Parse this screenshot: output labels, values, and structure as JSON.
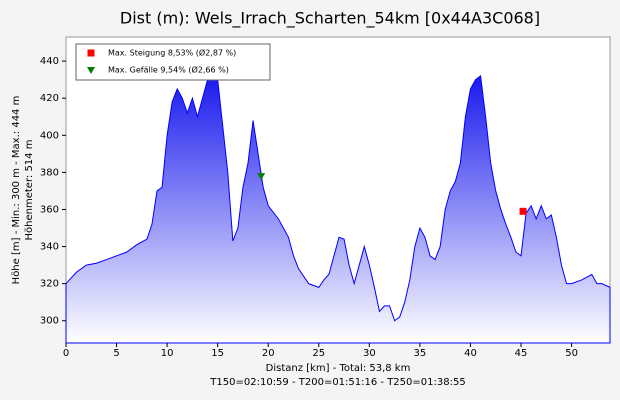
{
  "chart_data": {
    "type": "area",
    "title": "Dist (m):  Wels_Irrach_Scharten_54km [0x44A3C068]",
    "xlabel": "Distanz [km] - Total: 53,8 km",
    "footer": "T150=02:10:59 - T200=01:51:16 - T250=01:38:55",
    "ylabel": [
      "Höhe [m] - Min.: 300 m - Max.: 444 m",
      "Höhenmeter: 514 m"
    ],
    "color": "#0000ff",
    "x": [
      0,
      1,
      2,
      3,
      4,
      5,
      6,
      7,
      8,
      8.5,
      9,
      9.5,
      10,
      10.5,
      11,
      11.5,
      12,
      12.5,
      13,
      13.5,
      14,
      15,
      15.5,
      16,
      16.5,
      17,
      17.5,
      18,
      18.5,
      19,
      19.5,
      20,
      21,
      22,
      22.5,
      23,
      24,
      25,
      25.5,
      26,
      26.5,
      27,
      27.5,
      28,
      28.5,
      29,
      29.5,
      30,
      30.5,
      31,
      31.5,
      32,
      32.5,
      33,
      33.5,
      34,
      34.5,
      35,
      35.5,
      36,
      36.5,
      37,
      37.5,
      38,
      38.5,
      39,
      39.5,
      40,
      40.5,
      41,
      41.5,
      42,
      42.5,
      43,
      43.5,
      44,
      44.5,
      45,
      45.5,
      46,
      46.5,
      47,
      47.5,
      48,
      48.5,
      49,
      49.5,
      50,
      51,
      52,
      52.5,
      53,
      53.8
    ],
    "values": [
      320,
      326,
      330,
      331,
      333,
      335,
      337,
      341,
      344,
      352,
      370,
      372,
      400,
      418,
      425,
      420,
      412,
      420,
      410,
      420,
      430,
      430,
      405,
      380,
      343,
      350,
      372,
      385,
      408,
      390,
      372,
      362,
      355,
      345,
      335,
      328,
      320,
      318,
      322,
      325,
      335,
      345,
      344,
      330,
      320,
      330,
      340,
      330,
      318,
      305,
      308,
      308,
      300,
      302,
      310,
      322,
      340,
      350,
      345,
      335,
      333,
      340,
      360,
      370,
      375,
      385,
      410,
      425,
      430,
      432,
      410,
      385,
      370,
      360,
      352,
      345,
      337,
      335,
      358,
      362,
      355,
      362,
      355,
      357,
      345,
      330,
      320,
      320,
      322,
      325,
      320,
      320,
      318
    ],
    "xlim": [
      0,
      53.8
    ],
    "ylim": [
      288,
      453
    ],
    "xticks": [
      0,
      5,
      10,
      15,
      20,
      25,
      30,
      35,
      40,
      45,
      50
    ],
    "yticks": [
      300,
      320,
      340,
      360,
      380,
      400,
      420,
      440
    ],
    "markers": [
      {
        "label": "Max. Steigung 8,53% (Ø2,87 %)",
        "x": 45.2,
        "y": 359,
        "color": "#ff0000",
        "shape": "square"
      },
      {
        "label": "Max. Gefälle 9,54% (Ø2,66 %)",
        "x": 19.3,
        "y": 378,
        "color": "#008000",
        "shape": "triangle"
      }
    ]
  }
}
